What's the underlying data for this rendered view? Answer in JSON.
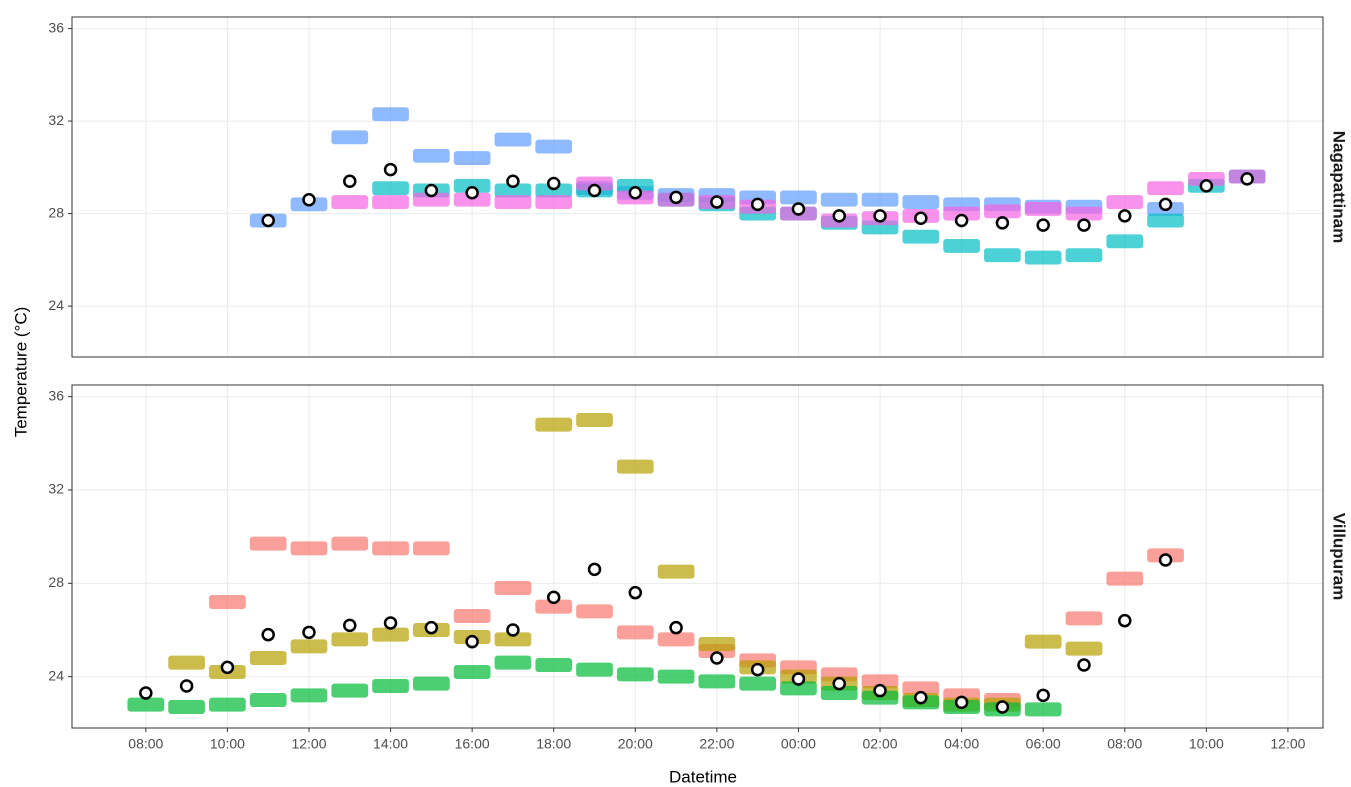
{
  "chart_data": {
    "type": "scatter",
    "x_label": "Datetime",
    "y_label": "Temperature (°C)",
    "xlim": [
      6.19,
      36.86
    ],
    "xticks": [
      {
        "value": 8,
        "label": "08:00"
      },
      {
        "value": 10,
        "label": "10:00"
      },
      {
        "value": 12,
        "label": "12:00"
      },
      {
        "value": 14,
        "label": "14:00"
      },
      {
        "value": 16,
        "label": "16:00"
      },
      {
        "value": 18,
        "label": "18:00"
      },
      {
        "value": 20,
        "label": "20:00"
      },
      {
        "value": 22,
        "label": "22:00"
      },
      {
        "value": 24,
        "label": "00:00"
      },
      {
        "value": 26,
        "label": "02:00"
      },
      {
        "value": 28,
        "label": "04:00"
      },
      {
        "value": 30,
        "label": "06:00"
      },
      {
        "value": 32,
        "label": "08:00"
      },
      {
        "value": 34,
        "label": "10:00"
      },
      {
        "value": 36,
        "label": "12:00"
      }
    ],
    "ylim": [
      21.8,
      36.5
    ],
    "yticks": [
      24,
      28,
      32,
      36
    ],
    "grid": true,
    "facets": [
      {
        "label": "Nagapattinam",
        "series": [
          {
            "color": "#619CFF",
            "marker": "cloud",
            "x": [
              11,
              12,
              13,
              14,
              15,
              16,
              17,
              18,
              19,
              20,
              21,
              22,
              23,
              24,
              25,
              26,
              27,
              28,
              29,
              30,
              31,
              33
            ],
            "values": [
              27.7,
              28.4,
              31.3,
              32.3,
              30.5,
              30.4,
              31.2,
              30.9,
              29.1,
              28.9,
              28.8,
              28.8,
              28.7,
              28.7,
              28.6,
              28.6,
              28.5,
              28.4,
              28.4,
              28.3,
              28.3,
              28.2
            ]
          },
          {
            "color": "#00BFC4",
            "marker": "cloud",
            "x": [
              14,
              15,
              16,
              17,
              18,
              19,
              20,
              21,
              22,
              23,
              24,
              25,
              26,
              27,
              28,
              29,
              30,
              31,
              32,
              33,
              34,
              35
            ],
            "values": [
              29.1,
              29.0,
              29.2,
              29.0,
              29.0,
              29.0,
              29.2,
              28.6,
              28.4,
              28.0,
              28.0,
              27.6,
              27.4,
              27.0,
              26.6,
              26.2,
              26.1,
              26.2,
              26.8,
              27.7,
              29.2,
              29.6
            ]
          },
          {
            "color": "#F564E3",
            "marker": "cloud",
            "x": [
              13,
              14,
              15,
              16,
              17,
              18,
              19,
              20,
              21,
              22,
              23,
              24,
              25,
              26,
              27,
              28,
              29,
              30,
              31,
              32,
              33,
              34,
              35
            ],
            "values": [
              28.5,
              28.5,
              28.6,
              28.6,
              28.5,
              28.5,
              29.3,
              28.7,
              28.6,
              28.5,
              28.3,
              28.0,
              27.7,
              27.8,
              27.9,
              28.0,
              28.1,
              28.2,
              28.0,
              28.5,
              29.1,
              29.5,
              29.6
            ]
          },
          {
            "color": "#ffffff",
            "marker": "ring",
            "x": [
              11,
              12,
              13,
              14,
              15,
              16,
              17,
              18,
              19,
              20,
              21,
              22,
              23,
              24,
              25,
              26,
              27,
              28,
              29,
              30,
              31,
              32,
              33,
              34,
              35
            ],
            "values": [
              27.7,
              28.6,
              29.4,
              29.9,
              29.0,
              28.9,
              29.4,
              29.3,
              29.0,
              28.9,
              28.7,
              28.5,
              28.4,
              28.2,
              27.9,
              27.9,
              27.8,
              27.7,
              27.6,
              27.5,
              27.5,
              27.9,
              28.4,
              29.2,
              29.5
            ]
          }
        ]
      },
      {
        "label": "Villupuram",
        "series": [
          {
            "color": "#F8766D",
            "marker": "cloud",
            "x": [
              10,
              11,
              12,
              13,
              14,
              15,
              16,
              17,
              18,
              19,
              20,
              21,
              22,
              23,
              24,
              25,
              26,
              27,
              28,
              29,
              31,
              32,
              33
            ],
            "values": [
              27.2,
              29.7,
              29.5,
              29.7,
              29.5,
              29.5,
              26.6,
              27.8,
              27.0,
              26.8,
              25.9,
              25.6,
              25.1,
              24.7,
              24.4,
              24.1,
              23.8,
              23.5,
              23.2,
              23.0,
              26.5,
              28.2,
              29.2
            ]
          },
          {
            "color": "#B79F00",
            "marker": "cloud",
            "x": [
              9,
              10,
              11,
              12,
              13,
              14,
              15,
              16,
              17,
              18,
              19,
              20,
              21,
              22,
              23,
              24,
              25,
              26,
              27,
              28,
              29,
              30,
              31
            ],
            "values": [
              24.6,
              24.2,
              24.8,
              25.3,
              25.6,
              25.8,
              26.0,
              25.7,
              25.6,
              34.8,
              35.0,
              33.0,
              28.5,
              25.4,
              24.4,
              24.0,
              23.7,
              23.3,
              23.0,
              22.8,
              22.8,
              25.5,
              25.2
            ]
          },
          {
            "color": "#00BA38",
            "marker": "cloud",
            "x": [
              8,
              9,
              10,
              11,
              12,
              13,
              14,
              15,
              16,
              17,
              18,
              19,
              20,
              21,
              22,
              23,
              24,
              25,
              26,
              27,
              28,
              29,
              30
            ],
            "values": [
              22.8,
              22.7,
              22.8,
              23.0,
              23.2,
              23.4,
              23.6,
              23.7,
              24.2,
              24.6,
              24.5,
              24.3,
              24.1,
              24.0,
              23.8,
              23.7,
              23.5,
              23.3,
              23.1,
              22.9,
              22.7,
              22.6,
              22.6
            ]
          },
          {
            "color": "#ffffff",
            "marker": "ring",
            "x": [
              8,
              9,
              10,
              11,
              12,
              13,
              14,
              15,
              16,
              17,
              18,
              19,
              20,
              21,
              22,
              23,
              24,
              25,
              26,
              27,
              28,
              29,
              30,
              31,
              32,
              33
            ],
            "values": [
              23.3,
              23.6,
              24.4,
              25.8,
              25.9,
              26.2,
              26.3,
              26.1,
              25.5,
              26.0,
              27.4,
              28.6,
              27.6,
              26.1,
              24.8,
              24.3,
              23.9,
              23.7,
              23.4,
              23.1,
              22.9,
              22.7,
              23.2,
              24.5,
              26.4,
              29.0
            ]
          }
        ]
      }
    ]
  }
}
